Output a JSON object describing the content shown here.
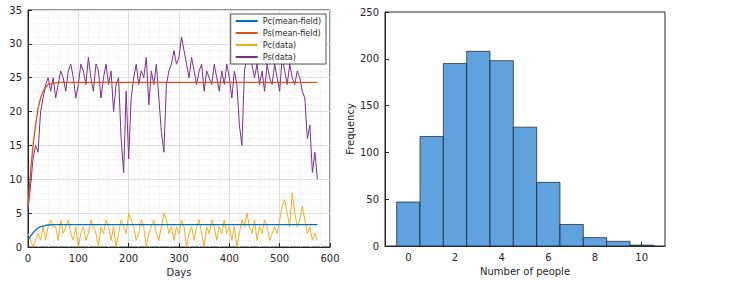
{
  "chart_data": [
    {
      "type": "line",
      "xlabel": "Days",
      "xlim": [
        0,
        600
      ],
      "xticks": [
        0,
        100,
        200,
        300,
        400,
        500,
        600
      ],
      "ylim": [
        0,
        35
      ],
      "yticks": [
        0,
        5,
        10,
        15,
        20,
        25,
        30,
        35
      ],
      "grid": true,
      "legend": "top-right",
      "series": [
        {
          "name": "Pc(mean-field)",
          "color": "#0072bd",
          "x": [
            0,
            5,
            10,
            15,
            20,
            25,
            30,
            35,
            40,
            50,
            60,
            575
          ],
          "values": [
            1,
            1.6,
            2.1,
            2.5,
            2.8,
            3.0,
            3.1,
            3.2,
            3.25,
            3.3,
            3.3,
            3.3
          ]
        },
        {
          "name": "Ps(mean-field)",
          "color": "#d95319",
          "x": [
            0,
            5,
            10,
            15,
            20,
            25,
            30,
            35,
            40,
            50,
            60,
            575
          ],
          "values": [
            6,
            11,
            15,
            18,
            20.5,
            22,
            23,
            23.6,
            24,
            24.2,
            24.3,
            24.3
          ]
        },
        {
          "name": "Pc(data)",
          "color": "#edb120",
          "x": [
            0,
            5,
            10,
            15,
            20,
            25,
            30,
            35,
            40,
            45,
            50,
            55,
            60,
            65,
            70,
            75,
            80,
            85,
            90,
            95,
            100,
            105,
            110,
            115,
            120,
            125,
            130,
            135,
            140,
            145,
            150,
            155,
            160,
            165,
            170,
            175,
            180,
            185,
            190,
            195,
            200,
            205,
            210,
            215,
            220,
            225,
            230,
            235,
            240,
            245,
            250,
            255,
            260,
            265,
            270,
            275,
            280,
            285,
            290,
            295,
            300,
            305,
            310,
            315,
            320,
            325,
            330,
            335,
            340,
            345,
            350,
            355,
            360,
            365,
            370,
            375,
            380,
            385,
            390,
            395,
            400,
            405,
            410,
            415,
            420,
            425,
            430,
            435,
            440,
            445,
            450,
            455,
            460,
            465,
            470,
            475,
            480,
            485,
            490,
            495,
            500,
            505,
            510,
            515,
            520,
            525,
            530,
            535,
            540,
            545,
            550,
            555,
            560,
            565,
            570,
            575
          ],
          "values": [
            2,
            1,
            0,
            1,
            2,
            1,
            3,
            1,
            3,
            4,
            3,
            3,
            1,
            4,
            2,
            3,
            4,
            2,
            1,
            3,
            0,
            2,
            3,
            1,
            2,
            4,
            3,
            2,
            0,
            3,
            2,
            4,
            3,
            1,
            3,
            0,
            2,
            4,
            3,
            2,
            5,
            4,
            3,
            1,
            2,
            4,
            3,
            0,
            2,
            3,
            4,
            2,
            1,
            3,
            5,
            4,
            2,
            3,
            1,
            3,
            2,
            4,
            3,
            0,
            2,
            3,
            1,
            3,
            4,
            2,
            0,
            3,
            2,
            4,
            3,
            1,
            3,
            2,
            4,
            2,
            3,
            1,
            3,
            0,
            2,
            4,
            3,
            5,
            3,
            2,
            4,
            1,
            3,
            2,
            4,
            3,
            1,
            2,
            3,
            2,
            4,
            6,
            7,
            5,
            3,
            8,
            5,
            3,
            4,
            6,
            4,
            2,
            3,
            1,
            2,
            1
          ]
        },
        {
          "name": "Ps(data)",
          "color": "#7e2f8e",
          "x": [
            0,
            5,
            10,
            15,
            20,
            25,
            30,
            35,
            40,
            45,
            50,
            55,
            60,
            65,
            70,
            75,
            80,
            85,
            90,
            95,
            100,
            105,
            110,
            115,
            120,
            125,
            130,
            135,
            140,
            145,
            150,
            155,
            160,
            165,
            170,
            175,
            180,
            185,
            190,
            195,
            200,
            205,
            210,
            215,
            220,
            225,
            230,
            235,
            240,
            245,
            250,
            255,
            260,
            265,
            270,
            275,
            280,
            285,
            290,
            295,
            300,
            305,
            310,
            315,
            320,
            325,
            330,
            335,
            340,
            345,
            350,
            355,
            360,
            365,
            370,
            375,
            380,
            385,
            390,
            395,
            400,
            405,
            410,
            415,
            420,
            425,
            430,
            435,
            440,
            445,
            450,
            455,
            460,
            465,
            470,
            475,
            480,
            485,
            490,
            495,
            500,
            505,
            510,
            515,
            520,
            525,
            530,
            535,
            540,
            545,
            550,
            555,
            560,
            565,
            570,
            575
          ],
          "values": [
            5.5,
            9,
            13,
            15,
            14,
            20,
            22,
            24,
            25,
            23,
            25,
            22,
            24,
            26,
            25,
            23,
            26,
            27,
            25,
            22,
            24,
            27,
            26,
            24,
            28,
            25,
            23,
            27,
            26,
            22,
            25,
            27,
            24,
            26,
            20,
            24,
            25,
            16,
            11,
            23,
            13,
            22,
            25,
            27,
            24,
            26,
            25,
            28,
            21,
            26,
            24,
            27,
            22,
            17,
            14,
            24,
            26,
            27,
            29,
            27,
            28,
            31,
            29,
            27,
            25,
            28,
            26,
            24,
            26,
            27,
            23,
            26,
            25,
            24,
            27,
            25,
            23,
            26,
            24,
            27,
            25,
            22,
            26,
            24,
            18,
            15,
            26,
            28,
            30,
            27,
            25,
            27,
            24,
            26,
            23,
            27,
            25,
            24,
            27,
            25,
            23,
            28,
            26,
            24,
            27,
            25,
            24,
            26,
            25,
            23,
            22,
            16,
            18,
            11,
            14,
            10
          ]
        }
      ]
    },
    {
      "type": "histogram",
      "xlabel": "Number of people",
      "ylabel": "Frequency",
      "xlim": [
        -1,
        11
      ],
      "xticks": [
        0,
        2,
        4,
        6,
        8,
        10
      ],
      "ylim": [
        0,
        250
      ],
      "yticks": [
        0,
        50,
        100,
        150,
        200,
        250
      ],
      "grid": false,
      "color": "#5fa2dd",
      "bins": [
        -0.5,
        0.5,
        1.5,
        2.5,
        3.5,
        4.5,
        5.5,
        6.5,
        7.5,
        8.5,
        9.5,
        10.5
      ],
      "values": [
        47,
        117,
        195,
        208,
        198,
        127,
        68,
        23,
        9,
        5,
        1
      ]
    }
  ]
}
